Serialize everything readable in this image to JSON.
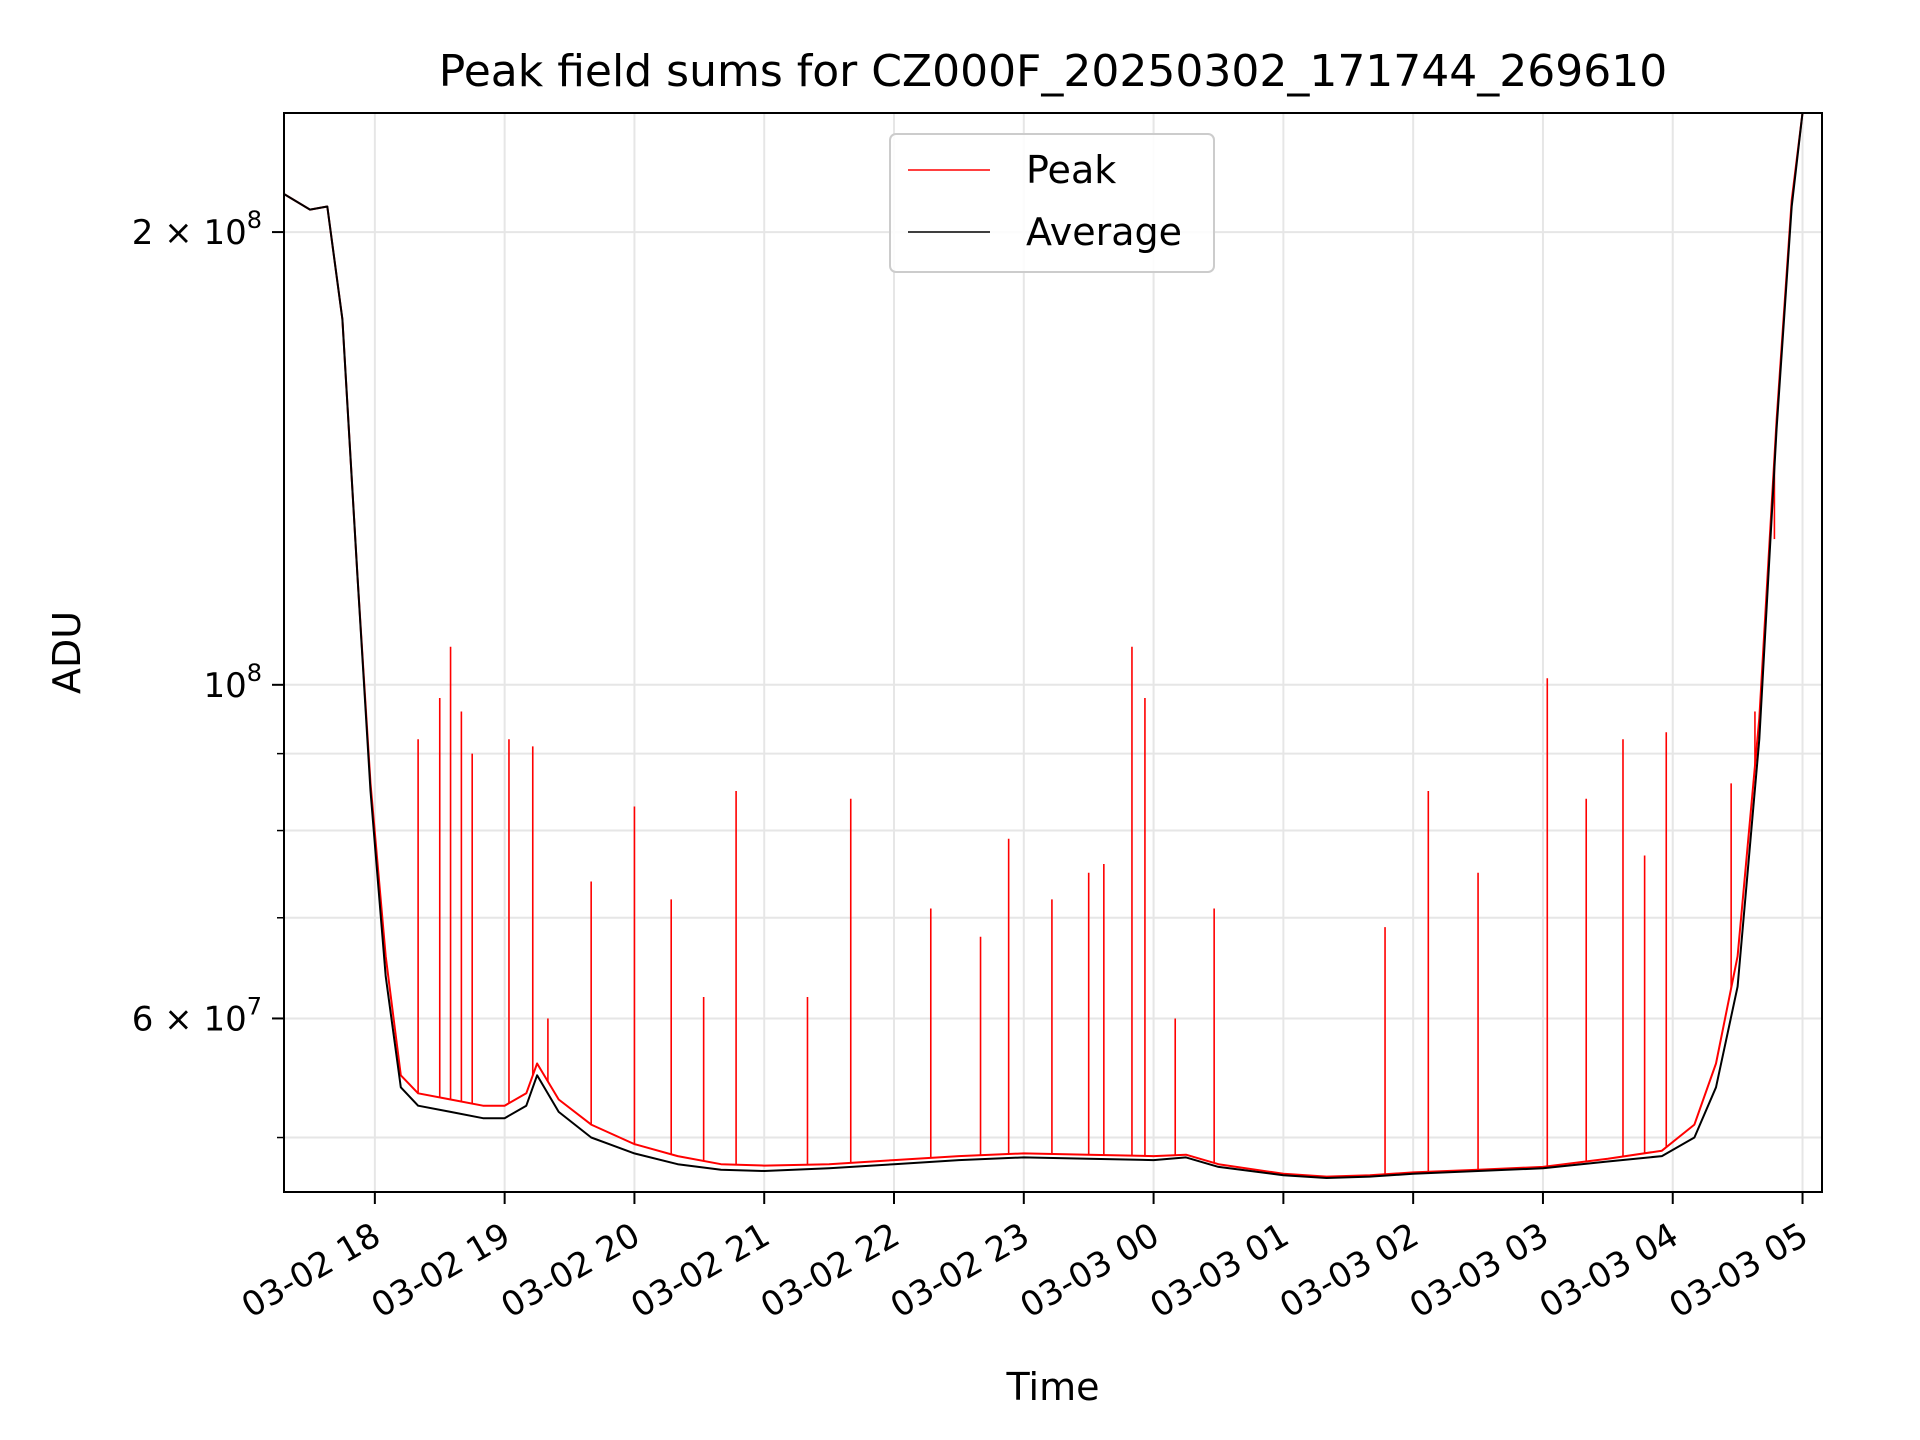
{
  "chart_data": {
    "type": "line",
    "title": "Peak field sums for CZ000F_20250302_171744_269610",
    "xlabel": "Time",
    "ylabel": "ADU",
    "y_scale": "log",
    "grid": true,
    "legend_placement": "upper-center",
    "xlim": [
      "2025-03-02 17:18",
      "2025-03-03 05:09"
    ],
    "ylim": [
      46000000,
      240000000
    ],
    "x_ticks": [
      {
        "value": "2025-03-02 18:00",
        "label": "03-02 18"
      },
      {
        "value": "2025-03-02 19:00",
        "label": "03-02 19"
      },
      {
        "value": "2025-03-02 20:00",
        "label": "03-02 20"
      },
      {
        "value": "2025-03-02 21:00",
        "label": "03-02 21"
      },
      {
        "value": "2025-03-02 22:00",
        "label": "03-02 22"
      },
      {
        "value": "2025-03-02 23:00",
        "label": "03-02 23"
      },
      {
        "value": "2025-03-03 00:00",
        "label": "03-03 00"
      },
      {
        "value": "2025-03-03 01:00",
        "label": "03-03 01"
      },
      {
        "value": "2025-03-03 02:00",
        "label": "03-03 02"
      },
      {
        "value": "2025-03-03 03:00",
        "label": "03-03 03"
      },
      {
        "value": "2025-03-03 04:00",
        "label": "03-03 04"
      },
      {
        "value": "2025-03-03 05:00",
        "label": "03-03 05"
      }
    ],
    "y_major_ticks": [
      {
        "value": 60000000,
        "mantissa": "6",
        "exp": "7",
        "has_mantissa": true
      },
      {
        "value": 100000000,
        "mantissa": "",
        "exp": "8",
        "has_mantissa": false
      },
      {
        "value": 200000000,
        "mantissa": "2",
        "exp": "8",
        "has_mantissa": true
      }
    ],
    "y_minor_ticks": [
      50000000,
      70000000,
      80000000,
      90000000
    ],
    "series": [
      {
        "name": "Peak",
        "color": "#ff0000",
        "x": [
          "2025-03-02 17:18",
          "2025-03-02 17:30",
          "2025-03-02 17:38",
          "2025-03-02 17:45",
          "2025-03-02 17:52",
          "2025-03-02 17:58",
          "2025-03-02 18:05",
          "2025-03-02 18:12",
          "2025-03-02 18:20",
          "2025-03-02 18:35",
          "2025-03-02 18:50",
          "2025-03-02 19:00",
          "2025-03-02 19:10",
          "2025-03-02 19:15",
          "2025-03-02 19:25",
          "2025-03-02 19:40",
          "2025-03-02 20:00",
          "2025-03-02 20:20",
          "2025-03-02 20:40",
          "2025-03-02 21:00",
          "2025-03-02 21:30",
          "2025-03-02 22:00",
          "2025-03-02 22:30",
          "2025-03-02 23:00",
          "2025-03-02 23:30",
          "2025-03-03 00:00",
          "2025-03-03 00:15",
          "2025-03-03 00:30",
          "2025-03-03 01:00",
          "2025-03-03 01:20",
          "2025-03-03 01:40",
          "2025-03-03 02:00",
          "2025-03-03 02:30",
          "2025-03-03 03:00",
          "2025-03-03 03:30",
          "2025-03-03 03:55",
          "2025-03-03 04:10",
          "2025-03-03 04:20",
          "2025-03-03 04:30",
          "2025-03-03 04:40",
          "2025-03-03 04:48",
          "2025-03-03 04:55",
          "2025-03-03 05:00"
        ],
        "y": [
          212000000,
          207000000,
          208000000,
          175000000,
          118000000,
          86000000,
          66000000,
          55000000,
          53500000,
          53000000,
          52500000,
          52500000,
          53500000,
          56000000,
          53000000,
          51000000,
          49500000,
          48600000,
          48000000,
          47900000,
          48000000,
          48300000,
          48600000,
          48800000,
          48700000,
          48600000,
          48700000,
          48000000,
          47300000,
          47100000,
          47200000,
          47400000,
          47600000,
          47800000,
          48400000,
          49000000,
          51000000,
          56000000,
          66000000,
          95000000,
          150000000,
          210000000,
          240000000
        ],
        "spikes": [
          {
            "x": "2025-03-02 18:20",
            "y": 92000000
          },
          {
            "x": "2025-03-02 18:30",
            "y": 98000000
          },
          {
            "x": "2025-03-02 18:35",
            "y": 106000000
          },
          {
            "x": "2025-03-02 18:40",
            "y": 96000000
          },
          {
            "x": "2025-03-02 18:45",
            "y": 90000000
          },
          {
            "x": "2025-03-02 19:02",
            "y": 92000000
          },
          {
            "x": "2025-03-02 19:13",
            "y": 91000000
          },
          {
            "x": "2025-03-02 19:20",
            "y": 60000000
          },
          {
            "x": "2025-03-02 19:40",
            "y": 74000000
          },
          {
            "x": "2025-03-02 20:00",
            "y": 83000000
          },
          {
            "x": "2025-03-02 20:17",
            "y": 72000000
          },
          {
            "x": "2025-03-02 20:32",
            "y": 62000000
          },
          {
            "x": "2025-03-02 20:47",
            "y": 85000000
          },
          {
            "x": "2025-03-02 21:20",
            "y": 62000000
          },
          {
            "x": "2025-03-02 21:40",
            "y": 84000000
          },
          {
            "x": "2025-03-02 22:17",
            "y": 71000000
          },
          {
            "x": "2025-03-02 22:40",
            "y": 68000000
          },
          {
            "x": "2025-03-02 22:53",
            "y": 79000000
          },
          {
            "x": "2025-03-02 23:13",
            "y": 72000000
          },
          {
            "x": "2025-03-02 23:30",
            "y": 75000000
          },
          {
            "x": "2025-03-02 23:37",
            "y": 76000000
          },
          {
            "x": "2025-03-02 23:50",
            "y": 106000000
          },
          {
            "x": "2025-03-02 23:56",
            "y": 98000000
          },
          {
            "x": "2025-03-03 00:10",
            "y": 60000000
          },
          {
            "x": "2025-03-03 00:28",
            "y": 71000000
          },
          {
            "x": "2025-03-03 01:47",
            "y": 69000000
          },
          {
            "x": "2025-03-03 02:07",
            "y": 85000000
          },
          {
            "x": "2025-03-03 02:30",
            "y": 75000000
          },
          {
            "x": "2025-03-03 03:02",
            "y": 101000000
          },
          {
            "x": "2025-03-03 03:20",
            "y": 84000000
          },
          {
            "x": "2025-03-03 03:37",
            "y": 92000000
          },
          {
            "x": "2025-03-03 03:47",
            "y": 77000000
          },
          {
            "x": "2025-03-03 03:57",
            "y": 93000000
          },
          {
            "x": "2025-03-03 04:27",
            "y": 86000000
          },
          {
            "x": "2025-03-03 04:38",
            "y": 96000000
          },
          {
            "x": "2025-03-03 04:47",
            "y": 125000000
          }
        ]
      },
      {
        "name": "Average",
        "color": "#000000",
        "x": [
          "2025-03-02 17:18",
          "2025-03-02 17:30",
          "2025-03-02 17:38",
          "2025-03-02 17:45",
          "2025-03-02 17:52",
          "2025-03-02 17:58",
          "2025-03-02 18:05",
          "2025-03-02 18:12",
          "2025-03-02 18:20",
          "2025-03-02 18:35",
          "2025-03-02 18:50",
          "2025-03-02 19:00",
          "2025-03-02 19:10",
          "2025-03-02 19:15",
          "2025-03-02 19:25",
          "2025-03-02 19:40",
          "2025-03-02 20:00",
          "2025-03-02 20:20",
          "2025-03-02 20:40",
          "2025-03-02 21:00",
          "2025-03-02 21:30",
          "2025-03-02 22:00",
          "2025-03-02 22:30",
          "2025-03-02 23:00",
          "2025-03-02 23:30",
          "2025-03-03 00:00",
          "2025-03-03 00:15",
          "2025-03-03 00:30",
          "2025-03-03 01:00",
          "2025-03-03 01:20",
          "2025-03-03 01:40",
          "2025-03-03 02:00",
          "2025-03-03 02:30",
          "2025-03-03 03:00",
          "2025-03-03 03:30",
          "2025-03-03 03:55",
          "2025-03-03 04:10",
          "2025-03-03 04:20",
          "2025-03-03 04:30",
          "2025-03-03 04:40",
          "2025-03-03 04:48",
          "2025-03-03 04:55",
          "2025-03-03 05:00"
        ],
        "y": [
          212000000,
          207000000,
          208000000,
          175000000,
          118000000,
          85000000,
          64000000,
          54000000,
          52500000,
          52000000,
          51500000,
          51500000,
          52500000,
          55000000,
          52000000,
          50000000,
          48800000,
          48000000,
          47600000,
          47500000,
          47700000,
          48000000,
          48300000,
          48500000,
          48400000,
          48300000,
          48500000,
          47800000,
          47200000,
          47000000,
          47100000,
          47300000,
          47500000,
          47700000,
          48200000,
          48600000,
          50000000,
          54000000,
          63000000,
          92000000,
          148000000,
          208000000,
          240000000
        ]
      }
    ]
  }
}
